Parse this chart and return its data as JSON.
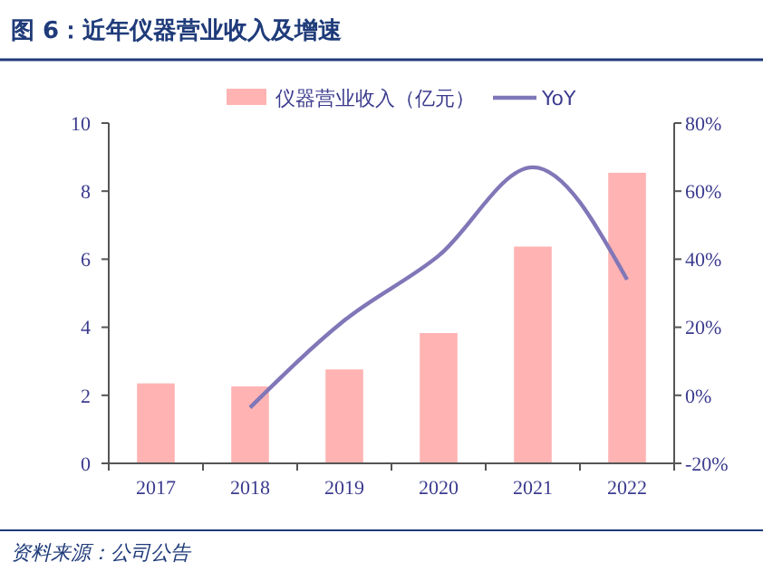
{
  "chart_data": {
    "type": "bar",
    "title": "图 6：近年仪器营业收入及增速",
    "categories": [
      "2017",
      "2018",
      "2019",
      "2020",
      "2021",
      "2022"
    ],
    "series": [
      {
        "name": "仪器营业收入（亿元）",
        "color": "#ffb3b3",
        "values": [
          2.35,
          2.26,
          2.76,
          3.83,
          6.37,
          8.54
        ]
      },
      {
        "name": "YoY",
        "type": "line",
        "axis": "y2",
        "color": "#8077b8",
        "values": [
          null,
          -3.6,
          22,
          41,
          67,
          34
        ]
      }
    ],
    "ylim": [
      0,
      10
    ],
    "yticks": [
      0,
      2,
      4,
      6,
      8,
      10
    ],
    "y2lim": [
      -20,
      80
    ],
    "y2ticks": [
      {
        "value": -20,
        "label": "-20%"
      },
      {
        "value": 0,
        "label": "0%"
      },
      {
        "value": 20,
        "label": "20%"
      },
      {
        "value": 40,
        "label": "40%"
      },
      {
        "value": 60,
        "label": "60%"
      },
      {
        "value": 80,
        "label": "80%"
      }
    ],
    "legend": "top",
    "grid": false,
    "marker": "none",
    "annotations": [
      "资料来源：公司公告"
    ]
  }
}
